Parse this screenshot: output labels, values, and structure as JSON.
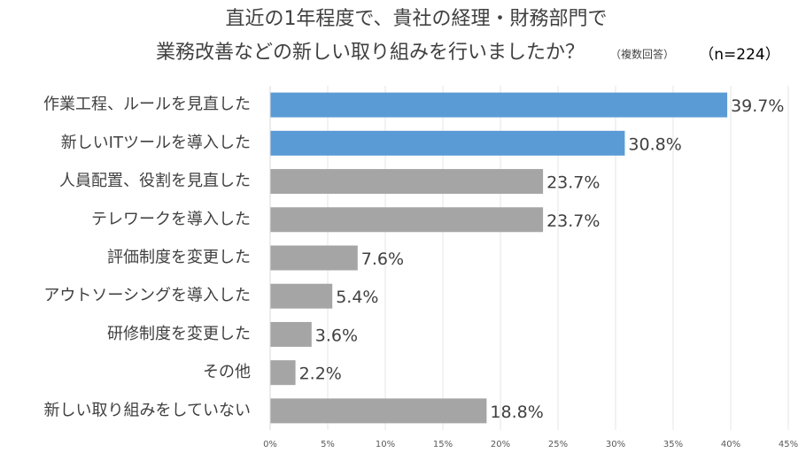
{
  "chart_data": {
    "type": "hbar",
    "title": [
      "直近の1年程度で、貴社の経理・財務部門で",
      "業務改善などの新しい取り組みを行いましたか？"
    ],
    "subtitle": "（複数回答）",
    "annotation": "（n=224）",
    "categories": [
      "作業工程、ルールを見直した",
      "新しいITツールを導入した",
      "人員配置、役割を見直した",
      "テレワークを導入した",
      "評価制度を変更した",
      "アウトソーシングを導入した",
      "研修制度を変更した",
      "その他",
      "新しい取り組みをしていない"
    ],
    "values": [
      39.7,
      30.8,
      23.7,
      23.7,
      7.6,
      5.4,
      3.6,
      2.2,
      18.8
    ],
    "value_labels": [
      "39.7%",
      "30.8%",
      "23.7%",
      "23.7%",
      "7.6%",
      "5.4%",
      "3.6%",
      "2.2%",
      "18.8%"
    ],
    "colors": [
      "#5b9bd5",
      "#5b9bd5",
      "#a5a5a5",
      "#a5a5a5",
      "#a5a5a5",
      "#a5a5a5",
      "#a5a5a5",
      "#a5a5a5",
      "#a5a5a5"
    ],
    "xlim": [
      0,
      45
    ],
    "xticks": [
      {
        "value": 0,
        "label": "0%"
      },
      {
        "value": 5,
        "label": "5%"
      },
      {
        "value": 10,
        "label": "10%"
      },
      {
        "value": 15,
        "label": "15%"
      },
      {
        "value": 20,
        "label": "20%"
      },
      {
        "value": 25,
        "label": "25%"
      },
      {
        "value": 30,
        "label": "30%"
      },
      {
        "value": 35,
        "label": "35%"
      },
      {
        "value": 40,
        "label": "40%"
      },
      {
        "value": 45,
        "label": "45%"
      }
    ],
    "grid": true
  }
}
